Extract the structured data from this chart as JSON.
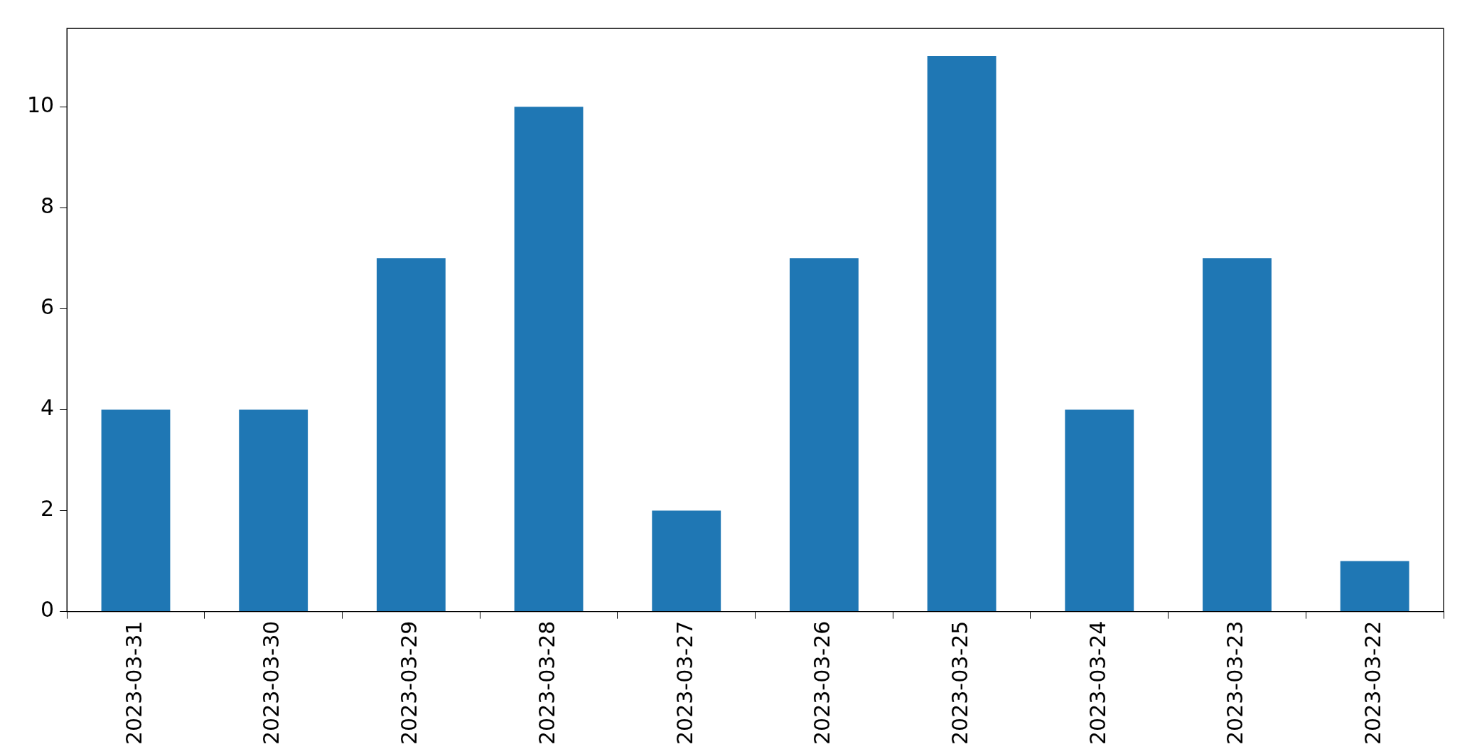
{
  "chart_data": {
    "type": "bar",
    "categories": [
      "2023-03-31",
      "2023-03-30",
      "2023-03-29",
      "2023-03-28",
      "2023-03-27",
      "2023-03-26",
      "2023-03-25",
      "2023-03-24",
      "2023-03-23",
      "2023-03-22"
    ],
    "values": [
      4,
      4,
      7,
      10,
      2,
      7,
      11,
      4,
      7,
      1
    ],
    "color": "#1f77b4",
    "ylim": [
      0,
      11.55
    ],
    "yticks": [
      0,
      2,
      4,
      6,
      8,
      10
    ],
    "grid": false,
    "legend": false
  }
}
